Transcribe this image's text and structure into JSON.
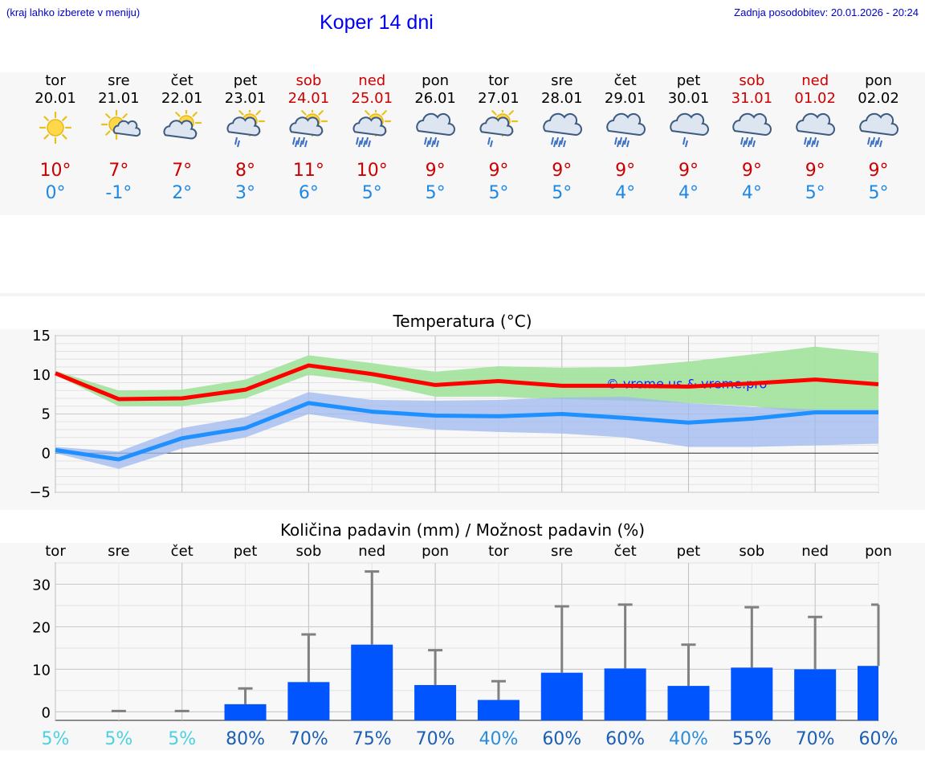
{
  "header": {
    "hint": "(kraj lahko izberete v meniju)",
    "title": "Koper 14 dni",
    "updated": "Zadnja posodobitev: 20.01.2026 - 20:24"
  },
  "days": [
    {
      "name": "tor",
      "date": "20.01",
      "weekend": false,
      "icon": "sun-icon",
      "tmax": "10°",
      "tmin": "0°"
    },
    {
      "name": "sre",
      "date": "21.01",
      "weekend": false,
      "icon": "sun-cloud-icon",
      "tmax": "7°",
      "tmin": "-1°"
    },
    {
      "name": "čet",
      "date": "22.01",
      "weekend": false,
      "icon": "cloud-sun-icon",
      "tmax": "7°",
      "tmin": "2°"
    },
    {
      "name": "pet",
      "date": "23.01",
      "weekend": false,
      "icon": "sun-cloud-rain-icon",
      "tmax": "8°",
      "tmin": "3°"
    },
    {
      "name": "sob",
      "date": "24.01",
      "weekend": true,
      "icon": "sun-cloud-heavy-rain-icon",
      "tmax": "11°",
      "tmin": "6°"
    },
    {
      "name": "ned",
      "date": "25.01",
      "weekend": true,
      "icon": "sun-cloud-heavy-rain-icon",
      "tmax": "10°",
      "tmin": "5°"
    },
    {
      "name": "pon",
      "date": "26.01",
      "weekend": false,
      "icon": "cloud-rain-icon",
      "tmax": "9°",
      "tmin": "5°"
    },
    {
      "name": "tor",
      "date": "27.01",
      "weekend": false,
      "icon": "sun-cloud-rain-icon",
      "tmax": "9°",
      "tmin": "5°"
    },
    {
      "name": "sre",
      "date": "28.01",
      "weekend": false,
      "icon": "cloud-rain-icon",
      "tmax": "9°",
      "tmin": "5°"
    },
    {
      "name": "čet",
      "date": "29.01",
      "weekend": false,
      "icon": "cloud-rain-icon",
      "tmax": "9°",
      "tmin": "4°"
    },
    {
      "name": "pet",
      "date": "30.01",
      "weekend": false,
      "icon": "cloud-light-rain-icon",
      "tmax": "9°",
      "tmin": "4°"
    },
    {
      "name": "sob",
      "date": "31.01",
      "weekend": true,
      "icon": "cloud-rain-icon",
      "tmax": "9°",
      "tmin": "4°"
    },
    {
      "name": "ned",
      "date": "01.02",
      "weekend": true,
      "icon": "cloud-rain-icon",
      "tmax": "9°",
      "tmin": "5°"
    },
    {
      "name": "pon",
      "date": "02.02",
      "weekend": false,
      "icon": "cloud-rain-icon",
      "tmax": "9°",
      "tmin": "5°"
    }
  ],
  "colors": {
    "max_line": "#ff0000",
    "min_line": "#1e90ff",
    "max_band": "#a7e4a0",
    "min_band": "#9db8f0",
    "bar": "#0055ff",
    "whisker": "#808080",
    "weekend": "#cc0000",
    "tmin": "#1e88e5"
  },
  "chart_data": [
    {
      "type": "line",
      "title": "Temperatura (°C)",
      "ylim": [
        -5,
        15
      ],
      "yticks": [
        "15",
        "10",
        "5",
        "0",
        "−5"
      ],
      "yticks_values": [
        15,
        10,
        5,
        0,
        -5
      ],
      "x": [
        "20.01",
        "21.01",
        "22.01",
        "23.01",
        "24.01",
        "25.01",
        "26.01",
        "27.01",
        "28.01",
        "29.01",
        "30.01",
        "31.01",
        "01.02",
        "02.02"
      ],
      "watermark": "© vreme.us & vreme.pro",
      "series": [
        {
          "name": "max",
          "values": [
            10.2,
            6.9,
            7.0,
            8.1,
            11.2,
            10.1,
            8.7,
            9.2,
            8.6,
            8.6,
            8.5,
            8.9,
            9.4,
            8.8
          ]
        },
        {
          "name": "min",
          "values": [
            0.4,
            -0.8,
            1.9,
            3.2,
            6.4,
            5.3,
            4.8,
            4.7,
            5.0,
            4.5,
            3.9,
            4.4,
            5.2,
            5.2
          ]
        }
      ],
      "bands": [
        {
          "name": "max-range",
          "low": [
            10.0,
            6.0,
            6.0,
            7.0,
            10.0,
            9.0,
            7.2,
            7.2,
            6.9,
            6.7,
            6.4,
            6.0,
            5.0,
            5.0
          ],
          "high": [
            10.5,
            8.0,
            8.1,
            9.4,
            12.5,
            11.5,
            10.4,
            11.1,
            10.9,
            11.0,
            11.7,
            12.6,
            13.6,
            12.8
          ]
        },
        {
          "name": "min-range",
          "low": [
            0.0,
            -2.0,
            0.6,
            2.0,
            5.0,
            3.8,
            3.0,
            2.7,
            2.5,
            2.0,
            0.8,
            0.8,
            1.0,
            1.2
          ],
          "high": [
            0.8,
            0.2,
            3.2,
            4.6,
            7.8,
            6.8,
            6.7,
            6.8,
            7.1,
            7.2,
            6.4,
            5.9,
            5.6,
            5.6
          ]
        }
      ]
    },
    {
      "type": "bar",
      "title": "Količina padavin (mm) / Možnost padavin (%)",
      "ylim": [
        -2,
        35
      ],
      "yticks": [
        "30",
        "20",
        "10",
        "0"
      ],
      "yticks_values": [
        30,
        20,
        10,
        0
      ],
      "categories": [
        "tor",
        "sre",
        "čet",
        "pet",
        "sob",
        "ned",
        "pon",
        "tor",
        "sre",
        "čet",
        "pet",
        "sob",
        "ned",
        "pon"
      ],
      "values": [
        0,
        0,
        0,
        1.8,
        7,
        15.8,
        6.3,
        2.8,
        9.2,
        10.2,
        6.1,
        10.4,
        10,
        10.8
      ],
      "error_high": [
        0,
        0.2,
        0.2,
        5.5,
        18.2,
        33.0,
        14.5,
        7.2,
        24.8,
        25.2,
        15.8,
        24.6,
        22.3,
        25.2
      ],
      "chance": [
        "5%",
        "5%",
        "5%",
        "80%",
        "70%",
        "75%",
        "70%",
        "40%",
        "60%",
        "60%",
        "40%",
        "55%",
        "70%",
        "60%"
      ],
      "chance_values": [
        5,
        5,
        5,
        80,
        70,
        75,
        70,
        40,
        60,
        60,
        40,
        55,
        70,
        60
      ]
    }
  ]
}
